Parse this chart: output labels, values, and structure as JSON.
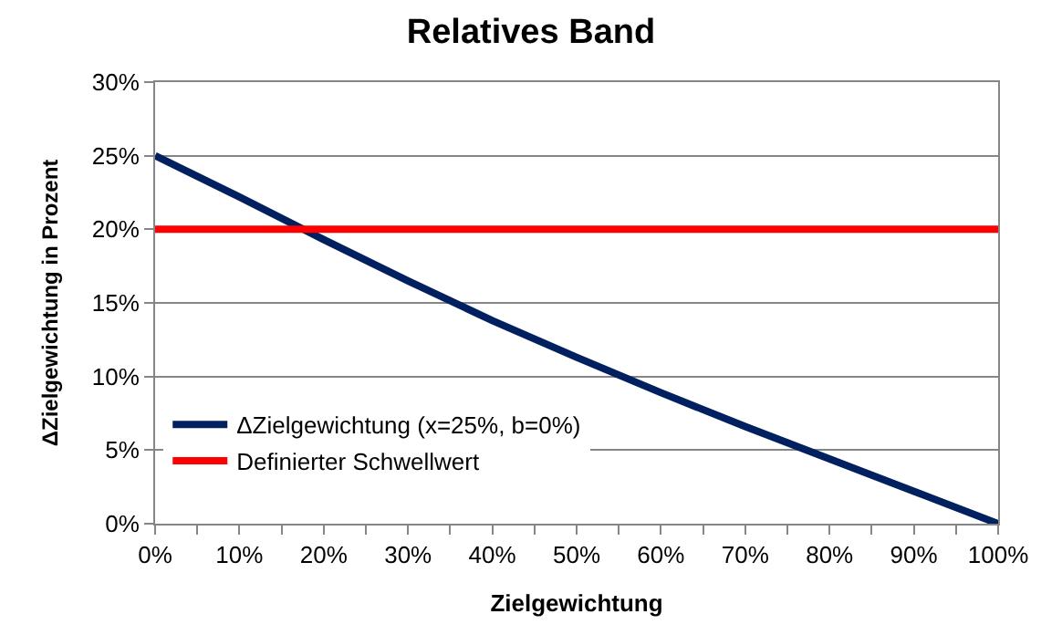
{
  "chart_data": {
    "type": "line",
    "title": "Relatives Band",
    "xlabel": "Zielgewichtung",
    "ylabel": "ΔZielgewichtung in Prozent",
    "x": [
      0,
      10,
      20,
      30,
      40,
      50,
      60,
      70,
      80,
      90,
      100
    ],
    "series": [
      {
        "name": "ΔZielgewichtung (x=25%, b=0%)",
        "color": "#002060",
        "values": [
          25,
          22.2,
          19.3,
          16.5,
          13.8,
          11.3,
          8.9,
          6.6,
          4.4,
          2.2,
          0
        ]
      },
      {
        "name": "Definierter Schwellwert",
        "color": "#ff0000",
        "values": [
          20,
          20,
          20,
          20,
          20,
          20,
          20,
          20,
          20,
          20,
          20
        ]
      }
    ],
    "xlim": [
      0,
      100
    ],
    "xticks": [
      {
        "value": 0,
        "label": "0%"
      },
      {
        "value": 5,
        "label": null
      },
      {
        "value": 10,
        "label": "10%"
      },
      {
        "value": 15,
        "label": null
      },
      {
        "value": 20,
        "label": "20%"
      },
      {
        "value": 25,
        "label": null
      },
      {
        "value": 30,
        "label": "30%"
      },
      {
        "value": 35,
        "label": null
      },
      {
        "value": 40,
        "label": "40%"
      },
      {
        "value": 45,
        "label": null
      },
      {
        "value": 50,
        "label": "50%"
      },
      {
        "value": 55,
        "label": null
      },
      {
        "value": 60,
        "label": "60%"
      },
      {
        "value": 65,
        "label": null
      },
      {
        "value": 70,
        "label": "70%"
      },
      {
        "value": 75,
        "label": null
      },
      {
        "value": 80,
        "label": "80%"
      },
      {
        "value": 85,
        "label": null
      },
      {
        "value": 90,
        "label": "90%"
      },
      {
        "value": 95,
        "label": null
      },
      {
        "value": 100,
        "label": "100%"
      }
    ],
    "ylim": [
      0,
      30
    ],
    "yticks": [
      {
        "value": 0,
        "label": "0%"
      },
      {
        "value": 5,
        "label": "5%"
      },
      {
        "value": 10,
        "label": "10%"
      },
      {
        "value": 15,
        "label": "15%"
      },
      {
        "value": 20,
        "label": "20%"
      },
      {
        "value": 25,
        "label": "25%"
      },
      {
        "value": 30,
        "label": "30%"
      }
    ],
    "grid": "y",
    "legend": "bottom left",
    "marker": "none",
    "line_style": "solid"
  }
}
